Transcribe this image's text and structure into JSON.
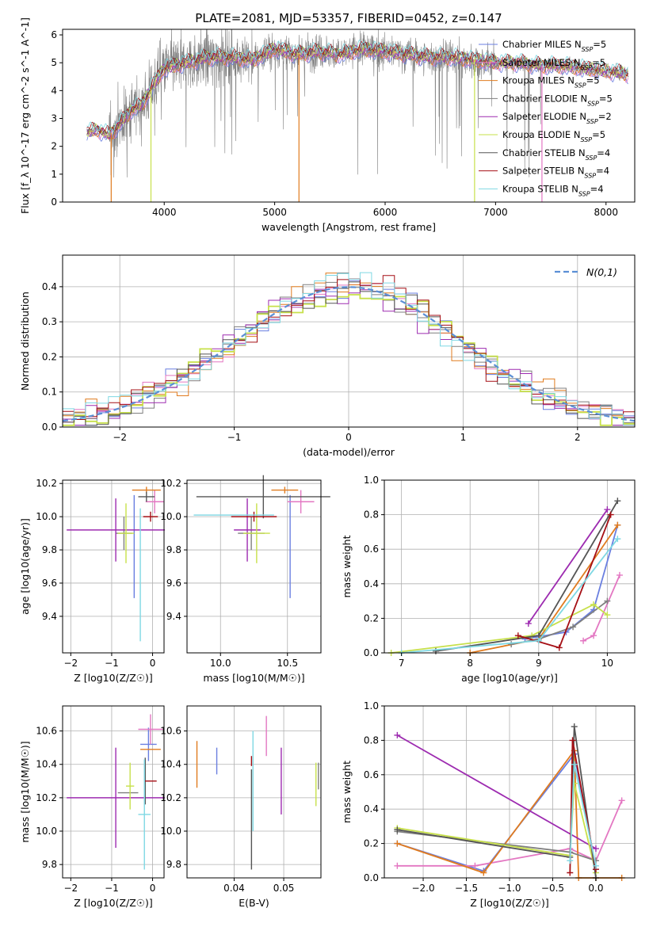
{
  "figure_title": "PLATE=2081, MJD=53357, FIBERID=0452, z=0.147",
  "colors": {
    "chabrier_miles": "#6a7fe0",
    "salpeter_miles": "#e377c2",
    "kroupa_miles": "#e07b1f",
    "chabrier_elodie": "#7f7f7f",
    "salpeter_elodie": "#9d2bb0",
    "kroupa_elodie": "#c7e04a",
    "chabrier_stelib": "#555555",
    "salpeter_stelib": "#a50f15",
    "kroupa_stelib": "#7fd8e3",
    "data": "#808080",
    "gaussian": "#5b8fd6"
  },
  "chart_data": [
    {
      "id": "spectrum",
      "type": "line",
      "xlabel": "wavelength [Angstrom, rest frame]",
      "ylabel": "Flux [f_λ 10^-17 erg cm^-2 s^-1 A^-1]",
      "xlim": [
        3080,
        8260
      ],
      "ylim": [
        0,
        6.2
      ],
      "xticks": [
        4000,
        5000,
        6000,
        7000,
        8000
      ],
      "yticks": [
        0,
        1,
        2,
        3,
        4,
        5,
        6
      ],
      "grid": false,
      "legend": "right",
      "data_continuum": {
        "x": [
          3300,
          3400,
          3500,
          3600,
          3700,
          3800,
          3900,
          4000,
          4100,
          4200,
          4400,
          4600,
          4800,
          5000,
          5200,
          5400,
          5600,
          5800,
          6000,
          6200,
          6400,
          6600,
          6800,
          7000,
          7200,
          7400,
          7600,
          7800,
          8000,
          8200
        ],
        "y": [
          2.5,
          2.6,
          2.4,
          2.8,
          3.3,
          3.5,
          4.2,
          4.8,
          4.9,
          5.0,
          5.2,
          5.2,
          5.1,
          5.5,
          5.3,
          5.4,
          5.3,
          5.5,
          5.4,
          5.3,
          5.2,
          5.2,
          5.1,
          5.0,
          5.0,
          4.9,
          4.9,
          4.8,
          4.7,
          4.6
        ]
      },
      "series": [
        {
          "name": "Chabrier MILES",
          "nssp": "5",
          "color_key": "chabrier_miles"
        },
        {
          "name": "Salpeter MILES",
          "nssp": "5",
          "color_key": "salpeter_miles"
        },
        {
          "name": "Kroupa MILES",
          "nssp": "5",
          "color_key": "kroupa_miles"
        },
        {
          "name": "Chabrier ELODIE",
          "nssp": "5",
          "color_key": "chabrier_elodie"
        },
        {
          "name": "Salpeter ELODIE",
          "nssp": "2",
          "color_key": "salpeter_elodie"
        },
        {
          "name": "Kroupa ELODIE",
          "nssp": "5",
          "color_key": "kroupa_elodie"
        },
        {
          "name": "Chabrier STELIB",
          "nssp": "4",
          "color_key": "chabrier_stelib"
        },
        {
          "name": "Salpeter STELIB",
          "nssp": "4",
          "color_key": "salpeter_stelib"
        },
        {
          "name": "Kroupa STELIB",
          "nssp": "4",
          "color_key": "kroupa_stelib"
        }
      ]
    },
    {
      "id": "residuals",
      "type": "histogram",
      "xlabel": "(data-model)/error",
      "ylabel": "Normed distribution",
      "xlim": [
        -2.5,
        2.5
      ],
      "ylim": [
        0,
        0.49
      ],
      "xticks": [
        -2,
        -1,
        0,
        1,
        2
      ],
      "yticks": [
        0.0,
        0.1,
        0.2,
        0.3,
        0.4
      ],
      "grid": true,
      "legend": "top-right",
      "gaussian_label": "N(0,1)",
      "bin_edges_range": [
        -2.5,
        2.5
      ],
      "bin_width": 0.1
    },
    {
      "id": "age_vs_Z",
      "type": "scatter",
      "xlabel": "Z [log10(Z/Z☉)]",
      "ylabel": "age [log10(age/yr)]",
      "xlim": [
        -2.2,
        0.28
      ],
      "ylim": [
        9.18,
        10.22
      ],
      "xticks": [
        -2,
        -1,
        0
      ],
      "yticks": [
        9.4,
        9.6,
        9.8,
        10.0,
        10.2
      ],
      "grid": true,
      "points": [
        {
          "k": "chabrier_miles",
          "x": -0.45,
          "y": 9.82,
          "xe": 0,
          "ye": 0.31
        },
        {
          "k": "salpeter_miles",
          "x": 0.05,
          "y": 10.09,
          "xe": 0.22,
          "ye": 0.07
        },
        {
          "k": "kroupa_miles",
          "x": -0.15,
          "y": 10.16,
          "xe": 0.35,
          "ye": 0.02
        },
        {
          "k": "chabrier_elodie",
          "x": -0.7,
          "y": 9.9,
          "xe": 0.2,
          "ye": 0.1
        },
        {
          "k": "salpeter_elodie",
          "x": -0.9,
          "y": 9.92,
          "xe": 1.2,
          "ye": 0.19
        },
        {
          "k": "kroupa_elodie",
          "x": -0.65,
          "y": 9.9,
          "xe": 0.2,
          "ye": 0.18
        },
        {
          "k": "chabrier_stelib",
          "x": -0.15,
          "y": 10.12,
          "xe": 0.2,
          "ye": 0.03
        },
        {
          "k": "salpeter_stelib",
          "x": -0.05,
          "y": 10.0,
          "xe": 0.18,
          "ye": 0.03
        },
        {
          "k": "kroupa_stelib",
          "x": -0.3,
          "y": 9.65,
          "xe": 0,
          "ye": 0.4
        }
      ]
    },
    {
      "id": "age_vs_mass",
      "type": "scatter",
      "xlabel": "mass [log10(M/M☉)]",
      "ylabel": "",
      "xlim": [
        9.75,
        10.75
      ],
      "ylim": [
        9.18,
        10.22
      ],
      "xticks": [
        10.0,
        10.5
      ],
      "yticks": [
        9.4,
        9.6,
        9.8,
        10.0,
        10.2
      ],
      "grid": true,
      "points": [
        {
          "k": "chabrier_miles",
          "x": 10.52,
          "y": 9.82,
          "xe": 0,
          "ye": 0.31
        },
        {
          "k": "salpeter_miles",
          "x": 10.6,
          "y": 10.09,
          "xe": 0.1,
          "ye": 0.07
        },
        {
          "k": "kroupa_miles",
          "x": 10.48,
          "y": 10.16,
          "xe": 0.1,
          "ye": 0.02
        },
        {
          "k": "chabrier_elodie",
          "x": 10.23,
          "y": 9.9,
          "xe": 0.1,
          "ye": 0.1
        },
        {
          "k": "salpeter_elodie",
          "x": 10.2,
          "y": 9.92,
          "xe": 0.1,
          "ye": 0.19
        },
        {
          "k": "kroupa_elodie",
          "x": 10.27,
          "y": 9.9,
          "xe": 0.1,
          "ye": 0.18
        },
        {
          "k": "chabrier_stelib",
          "x": 10.32,
          "y": 10.12,
          "xe": 0.5,
          "ye": 0.13
        },
        {
          "k": "salpeter_stelib",
          "x": 10.25,
          "y": 10.0,
          "xe": 0.17,
          "ye": 0.03
        },
        {
          "k": "kroupa_stelib",
          "x": 10.1,
          "y": 10.01,
          "xe": 0.3,
          "ye": 0.0
        }
      ]
    },
    {
      "id": "weight_vs_age",
      "type": "line",
      "xlabel": "age [log10(age/yr)]",
      "ylabel": "mass weight",
      "xlim": [
        6.75,
        10.4
      ],
      "ylim": [
        0,
        1.0
      ],
      "xticks": [
        7,
        8,
        9,
        10
      ],
      "yticks": [
        0.0,
        0.2,
        0.4,
        0.6,
        0.8,
        1.0
      ],
      "grid": true,
      "series": [
        {
          "k": "chabrier_miles",
          "x": [
            8.8,
            9.4,
            9.8,
            10.15
          ],
          "y": [
            0.08,
            0.12,
            0.25,
            0.74
          ]
        },
        {
          "k": "salpeter_miles",
          "x": [
            9.65,
            9.8,
            10.18
          ],
          "y": [
            0.07,
            0.1,
            0.45
          ]
        },
        {
          "k": "kroupa_miles",
          "x": [
            8.0,
            9.0,
            10.15
          ],
          "y": [
            0.0,
            0.08,
            0.74
          ]
        },
        {
          "k": "chabrier_elodie",
          "x": [
            8.6,
            9.0,
            9.5,
            10.0
          ],
          "y": [
            0.05,
            0.08,
            0.15,
            0.3
          ]
        },
        {
          "k": "salpeter_elodie",
          "x": [
            8.85,
            10.0
          ],
          "y": [
            0.17,
            0.83
          ]
        },
        {
          "k": "kroupa_elodie",
          "x": [
            6.85,
            8.9,
            9.8,
            10.0
          ],
          "y": [
            0.0,
            0.1,
            0.28,
            0.22
          ]
        },
        {
          "k": "chabrier_stelib",
          "x": [
            7.5,
            9.0,
            10.15
          ],
          "y": [
            0.01,
            0.1,
            0.88
          ]
        },
        {
          "k": "salpeter_stelib",
          "x": [
            8.7,
            9.3,
            10.05
          ],
          "y": [
            0.1,
            0.03,
            0.8
          ]
        },
        {
          "k": "kroupa_stelib",
          "x": [
            7.0,
            9.0,
            10.15
          ],
          "y": [
            0.0,
            0.07,
            0.66
          ]
        }
      ]
    },
    {
      "id": "mass_vs_Z",
      "type": "scatter",
      "xlabel": "Z [log10(Z/Z☉)]",
      "ylabel": "mass [log10(M/M☉)]",
      "xlim": [
        -2.2,
        0.28
      ],
      "ylim": [
        9.72,
        10.75
      ],
      "xticks": [
        -2,
        -1,
        0
      ],
      "yticks": [
        9.8,
        10.0,
        10.2,
        10.4,
        10.6
      ],
      "grid": true,
      "points": [
        {
          "k": "chabrier_miles",
          "x": -0.1,
          "y": 10.52,
          "xe": 0.2,
          "ye": 0.1
        },
        {
          "k": "salpeter_miles",
          "x": -0.05,
          "y": 10.61,
          "xe": 0.3,
          "ye": 0.09
        },
        {
          "k": "kroupa_miles",
          "x": -0.05,
          "y": 10.49,
          "xe": 0.25,
          "ye": 0.0
        },
        {
          "k": "chabrier_elodie",
          "x": -0.6,
          "y": 10.23,
          "xe": 0.25,
          "ye": 0.0
        },
        {
          "k": "salpeter_elodie",
          "x": -0.9,
          "y": 10.2,
          "xe": 1.2,
          "ye": 0.3
        },
        {
          "k": "kroupa_elodie",
          "x": -0.55,
          "y": 10.27,
          "xe": 0.1,
          "ye": 0.14
        },
        {
          "k": "chabrier_stelib",
          "x": -0.18,
          "y": 10.3,
          "xe": 0.0,
          "ye": 0.14
        },
        {
          "k": "salpeter_stelib",
          "x": -0.05,
          "y": 10.3,
          "xe": 0.15,
          "ye": 0.0
        },
        {
          "k": "kroupa_stelib",
          "x": -0.2,
          "y": 10.1,
          "xe": 0.15,
          "ye": 0.33
        }
      ]
    },
    {
      "id": "mass_vs_EBV",
      "type": "scatter",
      "xlabel": "E(B-V)",
      "ylabel": "",
      "xlim": [
        0.0305,
        0.0575
      ],
      "ylim": [
        9.72,
        10.75
      ],
      "xticks": [
        0.04,
        0.05
      ],
      "yticks": [
        9.8,
        10.0,
        10.2,
        10.4,
        10.6
      ],
      "grid": true,
      "points": [
        {
          "k": "kroupa_miles",
          "x": 0.0325,
          "y": 10.4,
          "xe": 0,
          "ye": 0.14
        },
        {
          "k": "chabrier_miles",
          "x": 0.0365,
          "y": 10.42,
          "xe": 0,
          "ye": 0.08
        },
        {
          "k": "salpeter_miles",
          "x": 0.0465,
          "y": 10.57,
          "xe": 0,
          "ye": 0.12
        },
        {
          "k": "salpeter_stelib",
          "x": 0.0435,
          "y": 10.42,
          "xe": 0,
          "ye": 0.03
        },
        {
          "k": "chabrier_stelib",
          "x": 0.0435,
          "y": 10.07,
          "xe": 0,
          "ye": 0.3
        },
        {
          "k": "kroupa_stelib",
          "x": 0.0438,
          "y": 10.3,
          "xe": 0,
          "ye": 0.3
        },
        {
          "k": "salpeter_elodie",
          "x": 0.0495,
          "y": 10.3,
          "xe": 0,
          "ye": 0.2
        },
        {
          "k": "kroupa_elodie",
          "x": 0.0565,
          "y": 10.28,
          "xe": 0,
          "ye": 0.13
        },
        {
          "k": "chabrier_elodie",
          "x": 0.057,
          "y": 10.33,
          "xe": 0,
          "ye": 0.08
        }
      ]
    },
    {
      "id": "weight_vs_Z",
      "type": "line",
      "xlabel": "Z [log10(Z/Z☉)]",
      "ylabel": "mass weight",
      "xlim": [
        -2.45,
        0.45
      ],
      "ylim": [
        0,
        1.0
      ],
      "xticks": [
        -2.0,
        -1.5,
        -1.0,
        -0.5,
        0.0
      ],
      "xticklabels": [
        "−2.0",
        "−1.5",
        "−1.0",
        "−0.5",
        "0.0"
      ],
      "yticks": [
        0.0,
        0.2,
        0.4,
        0.6,
        0.8,
        1.0
      ],
      "grid": true,
      "series": [
        {
          "k": "chabrier_miles",
          "x": [
            -2.3,
            -1.3,
            -0.25,
            0.0
          ],
          "y": [
            0.2,
            0.04,
            0.72,
            0.05
          ]
        },
        {
          "k": "salpeter_miles",
          "x": [
            -2.3,
            -1.4,
            -0.3,
            0.0,
            0.3
          ],
          "y": [
            0.07,
            0.07,
            0.17,
            0.1,
            0.45
          ]
        },
        {
          "k": "kroupa_miles",
          "x": [
            -2.3,
            -1.3,
            -0.25,
            -0.2,
            0.0,
            0.3
          ],
          "y": [
            0.2,
            0.03,
            0.74,
            0.0,
            0.0,
            0.0
          ]
        },
        {
          "k": "chabrier_elodie",
          "x": [
            -2.3,
            -0.3,
            0.0
          ],
          "y": [
            0.27,
            0.15,
            0.1
          ]
        },
        {
          "k": "salpeter_elodie",
          "x": [
            -2.3,
            0.0
          ],
          "y": [
            0.83,
            0.17
          ]
        },
        {
          "k": "kroupa_elodie",
          "x": [
            -2.3,
            -0.3,
            -0.25,
            0.0
          ],
          "y": [
            0.29,
            0.13,
            0.55,
            0.03
          ]
        },
        {
          "k": "chabrier_stelib",
          "x": [
            -2.3,
            -0.3,
            -0.25,
            0.0
          ],
          "y": [
            0.28,
            0.12,
            0.88,
            0.0
          ]
        },
        {
          "k": "salpeter_stelib",
          "x": [
            -0.3,
            -0.27,
            0.0
          ],
          "y": [
            0.03,
            0.8,
            0.05
          ]
        },
        {
          "k": "kroupa_stelib",
          "x": [
            -0.3,
            -0.25,
            0.0
          ],
          "y": [
            0.1,
            0.66,
            0.07
          ]
        }
      ]
    }
  ]
}
